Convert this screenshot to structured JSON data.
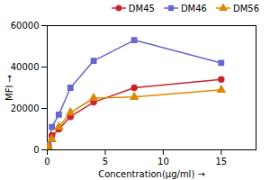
{
  "chart_data": {
    "type": "line",
    "xlabel": "Concentration(μg/ml)",
    "ylabel": "MFI",
    "x": [
      0.1,
      0.4,
      1,
      2,
      4,
      7.5,
      15
    ],
    "series": [
      {
        "name": "DM45",
        "color": "#CC2233",
        "marker": "circle",
        "values": [
          2000,
          7000,
          10000,
          16000,
          23000,
          30000,
          34000
        ]
      },
      {
        "name": "DM46",
        "color": "#6666CC",
        "marker": "square",
        "values": [
          2500,
          11000,
          17000,
          30000,
          43000,
          53000,
          42000
        ]
      },
      {
        "name": "DM56",
        "color": "#DD8800",
        "marker": "triangle",
        "values": [
          1500,
          5000,
          11000,
          18000,
          25000,
          25500,
          29000
        ]
      }
    ],
    "xlim": [
      0,
      18
    ],
    "ylim": [
      0,
      60000
    ],
    "xticks": [
      0,
      5,
      10,
      15
    ],
    "yticks": [
      0,
      20000,
      40000,
      60000
    ],
    "legend": "upper right"
  }
}
